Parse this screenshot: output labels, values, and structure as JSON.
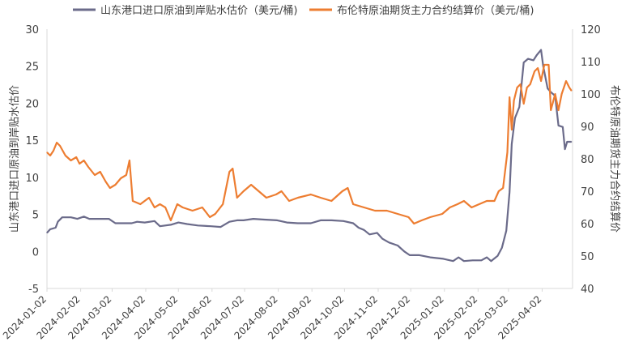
{
  "chart_data": {
    "type": "line",
    "legend_position": "top",
    "grid": false,
    "series": [
      {
        "name": "山东港口进口原油到岸贴水估价（美元/桶)",
        "axis": "left",
        "color": "#6b6b8a",
        "points": [
          [
            "2024-01-02",
            2.5
          ],
          [
            "2024-01-05",
            3.0
          ],
          [
            "2024-01-10",
            3.2
          ],
          [
            "2024-01-12",
            4.0
          ],
          [
            "2024-01-16",
            4.6
          ],
          [
            "2024-01-24",
            4.6
          ],
          [
            "2024-01-30",
            4.4
          ],
          [
            "2024-02-05",
            4.7
          ],
          [
            "2024-02-10",
            4.4
          ],
          [
            "2024-02-28",
            4.4
          ],
          [
            "2024-03-05",
            3.8
          ],
          [
            "2024-03-20",
            3.8
          ],
          [
            "2024-03-25",
            4.0
          ],
          [
            "2024-04-01",
            3.9
          ],
          [
            "2024-04-10",
            4.1
          ],
          [
            "2024-04-15",
            3.4
          ],
          [
            "2024-04-25",
            3.6
          ],
          [
            "2024-05-02",
            3.9
          ],
          [
            "2024-05-10",
            3.7
          ],
          [
            "2024-05-20",
            3.5
          ],
          [
            "2024-06-01",
            3.4
          ],
          [
            "2024-06-10",
            3.3
          ],
          [
            "2024-06-18",
            4.0
          ],
          [
            "2024-06-25",
            4.2
          ],
          [
            "2024-07-01",
            4.2
          ],
          [
            "2024-07-10",
            4.4
          ],
          [
            "2024-07-20",
            4.3
          ],
          [
            "2024-08-01",
            4.2
          ],
          [
            "2024-08-10",
            3.9
          ],
          [
            "2024-08-20",
            3.8
          ],
          [
            "2024-09-01",
            3.8
          ],
          [
            "2024-09-10",
            4.2
          ],
          [
            "2024-09-20",
            4.2
          ],
          [
            "2024-10-01",
            4.1
          ],
          [
            "2024-10-10",
            3.8
          ],
          [
            "2024-10-15",
            3.2
          ],
          [
            "2024-10-20",
            2.9
          ],
          [
            "2024-10-25",
            2.3
          ],
          [
            "2024-11-01",
            2.5
          ],
          [
            "2024-11-06",
            1.7
          ],
          [
            "2024-11-12",
            1.2
          ],
          [
            "2024-11-20",
            0.8
          ],
          [
            "2024-11-26",
            0.0
          ],
          [
            "2024-12-01",
            -0.5
          ],
          [
            "2024-12-10",
            -0.5
          ],
          [
            "2024-12-20",
            -0.8
          ],
          [
            "2025-01-01",
            -1.0
          ],
          [
            "2025-01-10",
            -1.3
          ],
          [
            "2025-01-15",
            -0.8
          ],
          [
            "2025-01-20",
            -1.3
          ],
          [
            "2025-01-28",
            -1.2
          ],
          [
            "2025-02-05",
            -1.2
          ],
          [
            "2025-02-10",
            -0.8
          ],
          [
            "2025-02-14",
            -1.3
          ],
          [
            "2025-02-20",
            -0.6
          ],
          [
            "2025-02-24",
            0.5
          ],
          [
            "2025-02-28",
            2.8
          ],
          [
            "2025-03-03",
            8.0
          ],
          [
            "2025-03-05",
            14.5
          ],
          [
            "2025-03-08",
            18.0
          ],
          [
            "2025-03-12",
            19.5
          ],
          [
            "2025-03-16",
            25.5
          ],
          [
            "2025-03-20",
            26.0
          ],
          [
            "2025-03-25",
            25.8
          ],
          [
            "2025-03-28",
            26.5
          ],
          [
            "2025-04-01",
            27.2
          ],
          [
            "2025-04-03",
            25.0
          ],
          [
            "2025-04-07",
            22.0
          ],
          [
            "2025-04-10",
            21.5
          ],
          [
            "2025-04-14",
            21.0
          ],
          [
            "2025-04-17",
            17.0
          ],
          [
            "2025-04-21",
            16.8
          ],
          [
            "2025-04-23",
            13.8
          ],
          [
            "2025-04-25",
            14.8
          ],
          [
            "2025-04-29",
            14.8
          ]
        ]
      },
      {
        "name": "布伦特原油期货主力合约结算价（美元/桶)",
        "axis": "right",
        "color": "#ed7d31",
        "points": [
          [
            "2024-01-02",
            82
          ],
          [
            "2024-01-05",
            81
          ],
          [
            "2024-01-08",
            82.5
          ],
          [
            "2024-01-11",
            85
          ],
          [
            "2024-01-14",
            84
          ],
          [
            "2024-01-19",
            81
          ],
          [
            "2024-01-24",
            79.5
          ],
          [
            "2024-01-29",
            80.5
          ],
          [
            "2024-02-01",
            78.5
          ],
          [
            "2024-02-05",
            79.5
          ],
          [
            "2024-02-09",
            77.5
          ],
          [
            "2024-02-15",
            75
          ],
          [
            "2024-02-20",
            76
          ],
          [
            "2024-02-25",
            73
          ],
          [
            "2024-02-29",
            71
          ],
          [
            "2024-03-05",
            72
          ],
          [
            "2024-03-10",
            74
          ],
          [
            "2024-03-15",
            75
          ],
          [
            "2024-03-18",
            79.5
          ],
          [
            "2024-03-21",
            67
          ],
          [
            "2024-03-28",
            66
          ],
          [
            "2024-04-05",
            68
          ],
          [
            "2024-04-10",
            65
          ],
          [
            "2024-04-15",
            66
          ],
          [
            "2024-04-20",
            65
          ],
          [
            "2024-04-25",
            61
          ],
          [
            "2024-05-01",
            66
          ],
          [
            "2024-05-06",
            65
          ],
          [
            "2024-05-15",
            64
          ],
          [
            "2024-05-24",
            65
          ],
          [
            "2024-05-31",
            62
          ],
          [
            "2024-06-05",
            63
          ],
          [
            "2024-06-12",
            66
          ],
          [
            "2024-06-18",
            76
          ],
          [
            "2024-06-21",
            77
          ],
          [
            "2024-06-25",
            68
          ],
          [
            "2024-07-01",
            70
          ],
          [
            "2024-07-08",
            72
          ],
          [
            "2024-07-15",
            70
          ],
          [
            "2024-07-22",
            68
          ],
          [
            "2024-07-31",
            69
          ],
          [
            "2024-08-05",
            70
          ],
          [
            "2024-08-12",
            67
          ],
          [
            "2024-08-20",
            68
          ],
          [
            "2024-09-01",
            69
          ],
          [
            "2024-09-10",
            68
          ],
          [
            "2024-09-20",
            67
          ],
          [
            "2024-09-30",
            70
          ],
          [
            "2024-10-05",
            71
          ],
          [
            "2024-10-10",
            66
          ],
          [
            "2024-10-20",
            65
          ],
          [
            "2024-10-30",
            64
          ],
          [
            "2024-11-10",
            64
          ],
          [
            "2024-11-20",
            63
          ],
          [
            "2024-11-30",
            62
          ],
          [
            "2024-12-05",
            60
          ],
          [
            "2024-12-12",
            61
          ],
          [
            "2024-12-20",
            62
          ],
          [
            "2024-12-31",
            63
          ],
          [
            "2025-01-07",
            65
          ],
          [
            "2025-01-14",
            66
          ],
          [
            "2025-01-20",
            67
          ],
          [
            "2025-01-27",
            65
          ],
          [
            "2025-02-03",
            66
          ],
          [
            "2025-02-10",
            67
          ],
          [
            "2025-02-17",
            67
          ],
          [
            "2025-02-21",
            70
          ],
          [
            "2025-02-25",
            71
          ],
          [
            "2025-03-01",
            82
          ],
          [
            "2025-03-03",
            99
          ],
          [
            "2025-03-05",
            89
          ],
          [
            "2025-03-07",
            98
          ],
          [
            "2025-03-10",
            102
          ],
          [
            "2025-03-13",
            103
          ],
          [
            "2025-03-16",
            97
          ],
          [
            "2025-03-19",
            102
          ],
          [
            "2025-03-22",
            103
          ],
          [
            "2025-03-26",
            107
          ],
          [
            "2025-03-29",
            108
          ],
          [
            "2025-04-01",
            104
          ],
          [
            "2025-04-04",
            109
          ],
          [
            "2025-04-08",
            109
          ],
          [
            "2025-04-10",
            95
          ],
          [
            "2025-04-14",
            100
          ],
          [
            "2025-04-17",
            95
          ],
          [
            "2025-04-20",
            100
          ],
          [
            "2025-04-24",
            104
          ],
          [
            "2025-04-27",
            102
          ],
          [
            "2025-04-29",
            101
          ]
        ]
      }
    ],
    "left_axis": {
      "label": "山东港口进口原油到岸贴水估价",
      "ylim": [
        -5,
        30
      ],
      "ticks": [
        -5,
        0,
        5,
        10,
        15,
        20,
        25,
        30
      ]
    },
    "right_axis": {
      "label": "布伦特原油期货主力合约结算价",
      "ylim": [
        40,
        120
      ],
      "ticks": [
        40,
        50,
        60,
        70,
        80,
        90,
        100,
        110,
        120
      ]
    },
    "x_axis": {
      "xlim": [
        "2024-01-02",
        "2025-04-30"
      ],
      "ticks": [
        "2024-01-02",
        "2024-02-02",
        "2024-03-02",
        "2024-04-02",
        "2024-05-02",
        "2024-06-02",
        "2024-07-02",
        "2024-08-02",
        "2024-09-02",
        "2024-10-02",
        "2024-11-02",
        "2024-12-02",
        "2025-01-02",
        "2025-02-02",
        "2025-03-02",
        "2025-04-02"
      ]
    }
  }
}
